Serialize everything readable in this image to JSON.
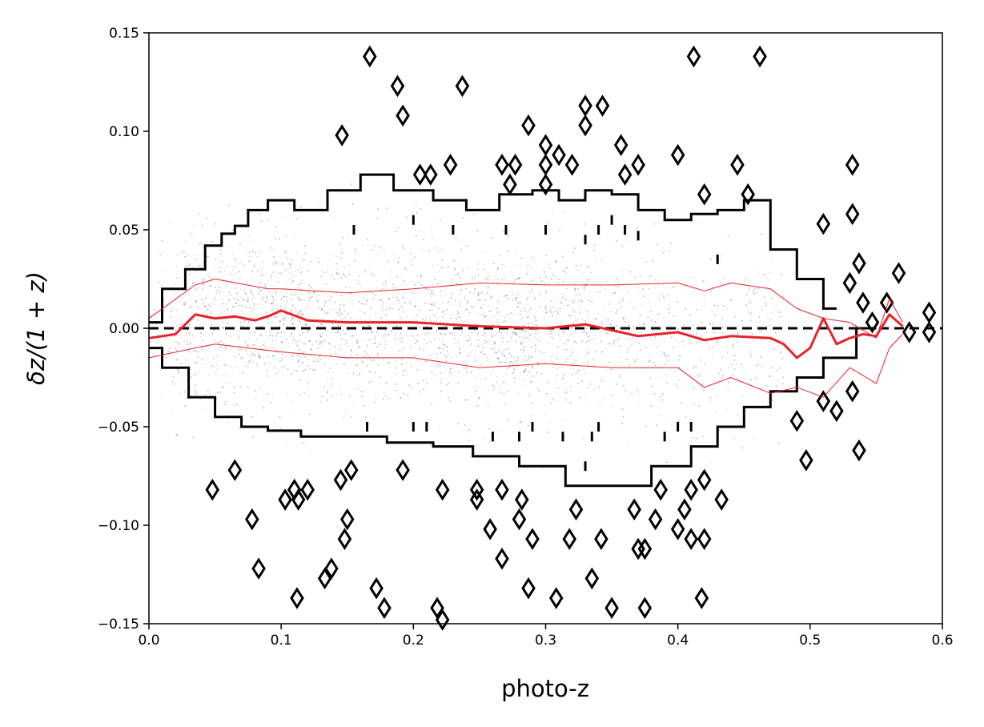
{
  "chart_data": {
    "type": "scatter",
    "title": "",
    "xlabel": "photo-z",
    "ylabel": "δz/(1 + z)",
    "xlim": [
      0.0,
      0.6
    ],
    "ylim": [
      -0.15,
      0.15
    ],
    "xticks": [
      "0.0",
      "0.1",
      "0.2",
      "0.3",
      "0.4",
      "0.5",
      "0.6"
    ],
    "yticks": [
      "0.15",
      "0.10",
      "0.05",
      "0.00",
      "−0.05",
      "−0.10",
      "−0.15"
    ],
    "grid": false,
    "legend": "none",
    "colors": {
      "scatter": "#000000",
      "contour": "#000000",
      "median": "#e8232a",
      "zero_line": "#000000"
    },
    "zero_line": {
      "y": 0.0,
      "style": "dashed"
    },
    "series": [
      {
        "kind": "median",
        "x": [
          0.0,
          0.02,
          0.035,
          0.05,
          0.065,
          0.08,
          0.09,
          0.1,
          0.12,
          0.15,
          0.2,
          0.25,
          0.3,
          0.33,
          0.35,
          0.37,
          0.4,
          0.42,
          0.44,
          0.47,
          0.48,
          0.49,
          0.5,
          0.51,
          0.52,
          0.53,
          0.54,
          0.55,
          0.56,
          0.57
        ],
        "y": [
          -0.005,
          -0.003,
          0.007,
          0.005,
          0.006,
          0.004,
          0.006,
          0.009,
          0.004,
          0.003,
          0.003,
          0.001,
          0.0,
          0.002,
          -0.001,
          -0.004,
          -0.002,
          -0.006,
          -0.004,
          -0.005,
          -0.008,
          -0.015,
          -0.01,
          0.005,
          -0.008,
          -0.005,
          -0.003,
          -0.004,
          0.007,
          0.001
        ]
      },
      {
        "kind": "upper_band",
        "x": [
          0.0,
          0.035,
          0.05,
          0.09,
          0.1,
          0.15,
          0.2,
          0.25,
          0.3,
          0.35,
          0.4,
          0.42,
          0.44,
          0.47,
          0.49,
          0.51,
          0.53,
          0.55,
          0.56,
          0.57
        ],
        "y": [
          0.005,
          0.022,
          0.025,
          0.02,
          0.02,
          0.018,
          0.02,
          0.023,
          0.022,
          0.022,
          0.023,
          0.019,
          0.023,
          0.02,
          0.01,
          0.005,
          0.003,
          -0.005,
          0.015,
          0.003
        ]
      },
      {
        "kind": "lower_band",
        "x": [
          0.0,
          0.035,
          0.05,
          0.1,
          0.15,
          0.2,
          0.25,
          0.3,
          0.35,
          0.4,
          0.42,
          0.44,
          0.47,
          0.49,
          0.51,
          0.53,
          0.55,
          0.56,
          0.57
        ],
        "y": [
          -0.015,
          -0.01,
          -0.008,
          -0.012,
          -0.015,
          -0.015,
          -0.02,
          -0.018,
          -0.02,
          -0.02,
          -0.03,
          -0.025,
          -0.033,
          -0.03,
          -0.035,
          -0.02,
          -0.028,
          -0.01,
          -0.003
        ]
      }
    ],
    "contour_outer_upper": {
      "x": [
        0.0,
        0.02,
        0.035,
        0.05,
        0.06,
        0.07,
        0.08,
        0.1,
        0.12,
        0.15,
        0.17,
        0.2,
        0.23,
        0.25,
        0.28,
        0.3,
        0.32,
        0.34,
        0.36,
        0.38,
        0.4,
        0.42,
        0.44,
        0.46,
        0.48,
        0.5,
        0.52
      ],
      "y": [
        0.003,
        0.02,
        0.03,
        0.042,
        0.048,
        0.052,
        0.06,
        0.065,
        0.06,
        0.07,
        0.078,
        0.07,
        0.065,
        0.06,
        0.068,
        0.07,
        0.065,
        0.07,
        0.068,
        0.06,
        0.055,
        0.058,
        0.06,
        0.065,
        0.04,
        0.025,
        0.01
      ]
    },
    "contour_outer_lower": {
      "x": [
        0.0,
        0.02,
        0.04,
        0.06,
        0.08,
        0.1,
        0.13,
        0.16,
        0.2,
        0.23,
        0.26,
        0.3,
        0.33,
        0.36,
        0.4,
        0.42,
        0.44,
        0.46,
        0.48,
        0.5,
        0.52,
        0.55
      ],
      "y": [
        -0.01,
        -0.02,
        -0.035,
        -0.045,
        -0.05,
        -0.052,
        -0.055,
        -0.055,
        -0.058,
        -0.06,
        -0.065,
        -0.07,
        -0.08,
        -0.08,
        -0.07,
        -0.06,
        -0.05,
        -0.04,
        -0.032,
        -0.025,
        -0.015,
        0.0
      ]
    },
    "contour_islands": [
      [
        0.167,
        0.138
      ],
      [
        0.412,
        0.138
      ],
      [
        0.462,
        0.138
      ],
      [
        0.188,
        0.123
      ],
      [
        0.237,
        0.123
      ],
      [
        0.192,
        0.108
      ],
      [
        0.33,
        0.113
      ],
      [
        0.343,
        0.113
      ],
      [
        0.146,
        0.098
      ],
      [
        0.287,
        0.103
      ],
      [
        0.33,
        0.103
      ],
      [
        0.357,
        0.093
      ],
      [
        0.4,
        0.088
      ],
      [
        0.445,
        0.083
      ],
      [
        0.532,
        0.083
      ],
      [
        0.228,
        0.083
      ],
      [
        0.267,
        0.083
      ],
      [
        0.277,
        0.083
      ],
      [
        0.3,
        0.093
      ],
      [
        0.3,
        0.083
      ],
      [
        0.37,
        0.083
      ],
      [
        0.31,
        0.088
      ],
      [
        0.32,
        0.083
      ],
      [
        0.36,
        0.078
      ],
      [
        0.213,
        0.078
      ],
      [
        0.205,
        0.078
      ],
      [
        0.273,
        0.073
      ],
      [
        0.3,
        0.073
      ],
      [
        0.42,
        0.068
      ],
      [
        0.453,
        0.068
      ],
      [
        0.532,
        0.058
      ],
      [
        0.51,
        0.053
      ],
      [
        0.53,
        0.023
      ],
      [
        0.537,
        0.033
      ],
      [
        0.567,
        0.028
      ],
      [
        0.54,
        0.013
      ],
      [
        0.558,
        0.013
      ],
      [
        0.547,
        0.003
      ],
      [
        0.59,
        0.008
      ],
      [
        0.59,
        -0.002
      ],
      [
        0.575,
        -0.002
      ],
      [
        0.532,
        -0.032
      ],
      [
        0.51,
        -0.037
      ],
      [
        0.52,
        -0.042
      ],
      [
        0.49,
        -0.047
      ],
      [
        0.537,
        -0.062
      ],
      [
        0.497,
        -0.067
      ],
      [
        0.048,
        -0.082
      ],
      [
        0.065,
        -0.072
      ],
      [
        0.11,
        -0.082
      ],
      [
        0.12,
        -0.082
      ],
      [
        0.145,
        -0.077
      ],
      [
        0.153,
        -0.072
      ],
      [
        0.192,
        -0.072
      ],
      [
        0.222,
        -0.082
      ],
      [
        0.248,
        -0.082
      ],
      [
        0.267,
        -0.082
      ],
      [
        0.282,
        -0.087
      ],
      [
        0.387,
        -0.082
      ],
      [
        0.41,
        -0.082
      ],
      [
        0.42,
        -0.077
      ],
      [
        0.433,
        -0.087
      ],
      [
        0.078,
        -0.097
      ],
      [
        0.103,
        -0.087
      ],
      [
        0.113,
        -0.087
      ],
      [
        0.15,
        -0.097
      ],
      [
        0.248,
        -0.087
      ],
      [
        0.258,
        -0.102
      ],
      [
        0.28,
        -0.097
      ],
      [
        0.323,
        -0.092
      ],
      [
        0.367,
        -0.092
      ],
      [
        0.383,
        -0.097
      ],
      [
        0.4,
        -0.102
      ],
      [
        0.405,
        -0.092
      ],
      [
        0.41,
        -0.107
      ],
      [
        0.42,
        -0.107
      ],
      [
        0.148,
        -0.107
      ],
      [
        0.267,
        -0.117
      ],
      [
        0.29,
        -0.107
      ],
      [
        0.318,
        -0.107
      ],
      [
        0.342,
        -0.107
      ],
      [
        0.37,
        -0.112
      ],
      [
        0.375,
        -0.112
      ],
      [
        0.083,
        -0.122
      ],
      [
        0.138,
        -0.122
      ],
      [
        0.133,
        -0.127
      ],
      [
        0.172,
        -0.132
      ],
      [
        0.287,
        -0.132
      ],
      [
        0.308,
        -0.137
      ],
      [
        0.335,
        -0.127
      ],
      [
        0.35,
        -0.142
      ],
      [
        0.375,
        -0.142
      ],
      [
        0.112,
        -0.137
      ],
      [
        0.178,
        -0.142
      ],
      [
        0.218,
        -0.142
      ],
      [
        0.418,
        -0.137
      ],
      [
        0.222,
        -0.148
      ]
    ],
    "contour_ticks": [
      [
        0.155,
        0.05
      ],
      [
        0.2,
        0.055
      ],
      [
        0.23,
        0.05
      ],
      [
        0.27,
        0.05
      ],
      [
        0.3,
        0.05
      ],
      [
        0.34,
        0.05
      ],
      [
        0.36,
        0.05
      ],
      [
        0.35,
        0.055
      ],
      [
        0.37,
        0.047
      ],
      [
        0.33,
        0.045
      ],
      [
        0.43,
        0.035
      ],
      [
        0.165,
        -0.05
      ],
      [
        0.2,
        -0.05
      ],
      [
        0.21,
        -0.05
      ],
      [
        0.26,
        -0.055
      ],
      [
        0.28,
        -0.055
      ],
      [
        0.29,
        -0.05
      ],
      [
        0.313,
        -0.055
      ],
      [
        0.335,
        -0.055
      ],
      [
        0.34,
        -0.05
      ],
      [
        0.39,
        -0.055
      ],
      [
        0.4,
        -0.05
      ],
      [
        0.41,
        -0.05
      ],
      [
        0.33,
        -0.07
      ]
    ]
  }
}
